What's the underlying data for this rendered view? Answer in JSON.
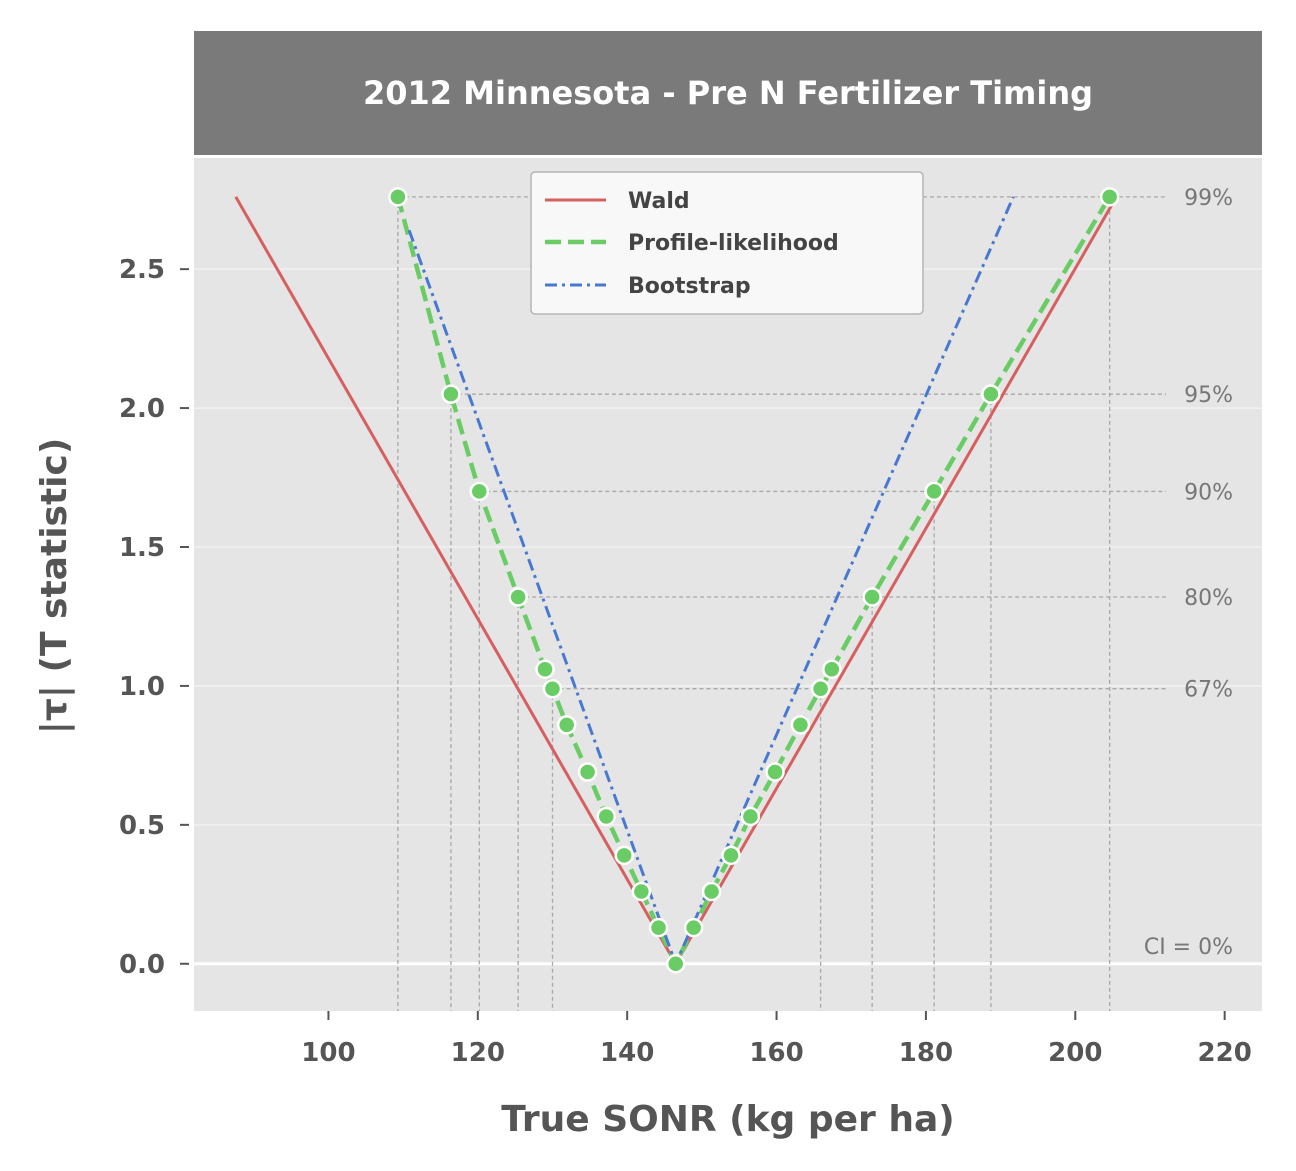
{
  "chart_data": {
    "type": "line",
    "title": "2012 Minnesota - Pre N Fertilizer Timing",
    "xlabel": "True SONR (kg per ha)",
    "ylabel": "|τ| (T statistic)",
    "xlim": [
      82,
      225
    ],
    "ylim": [
      -0.17,
      2.9
    ],
    "xticks": [
      100,
      120,
      140,
      160,
      180,
      200,
      220
    ],
    "yticks": [
      0.0,
      0.5,
      1.0,
      1.5,
      2.0,
      2.5
    ],
    "ytick_labels": [
      "0.0",
      "0.5",
      "1.0",
      "1.5",
      "2.0",
      "2.5"
    ],
    "grid": true,
    "legend_position": "top-center",
    "series": [
      {
        "name": "Wald",
        "style": "solid",
        "color": "#d65f5f",
        "x": [
          87.6,
          146.5,
          205.5
        ],
        "y": [
          2.76,
          0.0,
          2.76
        ]
      },
      {
        "name": "Profile-likelihood",
        "style": "dashed",
        "color": "#6acc64",
        "markers": true,
        "x": [
          109.3,
          116.4,
          120.2,
          125.4,
          129.0,
          130.0,
          131.9,
          134.7,
          137.2,
          139.6,
          141.9,
          144.2,
          146.5,
          148.9,
          151.3,
          153.9,
          156.5,
          159.8,
          163.2,
          165.9,
          167.4,
          172.8,
          181.1,
          188.7,
          204.6
        ],
        "y": [
          2.76,
          2.05,
          1.7,
          1.32,
          1.06,
          0.99,
          0.86,
          0.69,
          0.53,
          0.39,
          0.26,
          0.13,
          0.0,
          0.13,
          0.26,
          0.39,
          0.53,
          0.69,
          0.86,
          0.99,
          1.06,
          1.32,
          1.7,
          2.05,
          2.76
        ]
      },
      {
        "name": "Bootstrap",
        "style": "dashdot",
        "color": "#4878d0",
        "x": [
          110.8,
          146.5,
          191.7
        ],
        "y": [
          2.64,
          0.0,
          2.76
        ]
      }
    ],
    "ci_levels": [
      {
        "label": "CI = 0%",
        "y": 0.0
      },
      {
        "label": "67%",
        "y": 0.99,
        "x_low": 130.0,
        "x_high": 165.9
      },
      {
        "label": "80%",
        "y": 1.32,
        "x_low": 125.4,
        "x_high": 172.8
      },
      {
        "label": "90%",
        "y": 1.7,
        "x_low": 120.2,
        "x_high": 181.1
      },
      {
        "label": "95%",
        "y": 2.05,
        "x_low": 116.4,
        "x_high": 188.7
      },
      {
        "label": "99%",
        "y": 2.76,
        "x_low": 109.3,
        "x_high": 204.6
      }
    ],
    "colors": {
      "panel_background": "#e5e5e5",
      "title_strip": "#7a7a7a",
      "grid": "#f2f2f2",
      "reference_lines": "#a8a8a8"
    }
  }
}
